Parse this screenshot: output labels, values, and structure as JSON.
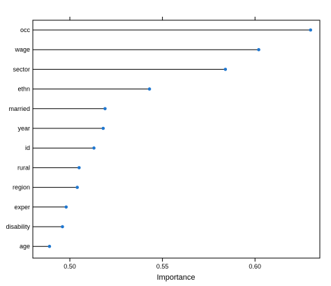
{
  "chart_data": {
    "type": "dotplot",
    "xlabel": "Importance",
    "xlim": [
      0.48,
      0.635
    ],
    "ticks": [
      0.5,
      0.55,
      0.6
    ],
    "tick_labels": [
      "0.50",
      "0.55",
      "0.60"
    ],
    "categories": [
      "occ",
      "wage",
      "sector",
      "ethn",
      "married",
      "year",
      "id",
      "rural",
      "region",
      "exper",
      "disability",
      "age"
    ],
    "values": [
      0.63,
      0.602,
      0.584,
      0.543,
      0.519,
      0.518,
      0.513,
      0.505,
      0.504,
      0.498,
      0.496,
      0.489
    ],
    "point_color": "#1f77d0",
    "line_color": "#000000",
    "grid": false
  }
}
